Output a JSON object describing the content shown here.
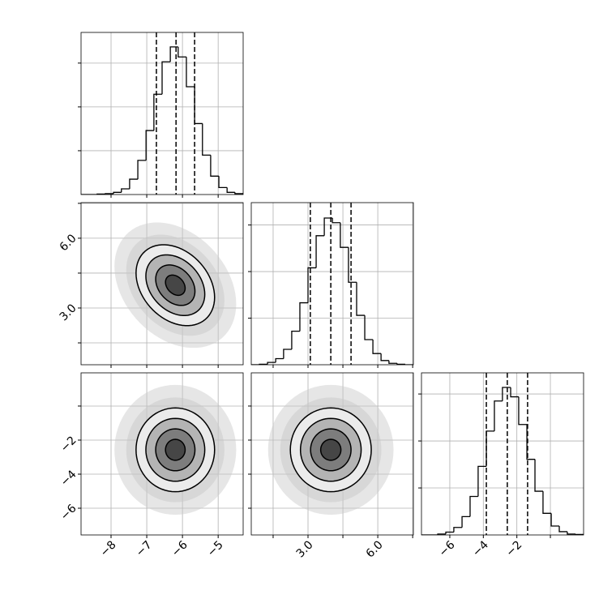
{
  "chart_data": [
    {
      "type": "histogram",
      "color": "#000000",
      "bins": [
        -8.84,
        -8.61,
        -8.39,
        -8.16,
        -7.93,
        -7.71,
        -7.48,
        -7.25,
        -7.02,
        -6.8,
        -6.57,
        -6.34,
        -6.12,
        -5.89,
        -5.66,
        -5.44,
        -5.21,
        -4.98,
        -4.75,
        -4.53,
        -4.3
      ],
      "counts": [
        0,
        0,
        0.01,
        0.02,
        0.05,
        0.13,
        0.35,
        0.78,
        1.46,
        2.29,
        3.03,
        3.37,
        3.14,
        2.46,
        1.62,
        0.9,
        0.42,
        0.16,
        0.05,
        0.02
      ],
      "quantiles": [
        -6.73,
        -6.18,
        -5.66
      ],
      "xlim": [
        -8.84,
        -4.3
      ],
      "ylim": [
        0,
        3.7
      ],
      "xticks": [
        -8,
        -7,
        -6,
        -5
      ],
      "yticks": [
        1,
        2,
        3
      ]
    },
    {
      "type": "contour",
      "color": "#000000",
      "mean": [
        -6.2,
        3.98
      ],
      "std": [
        0.55,
        0.87
      ],
      "corr": -0.3,
      "levels": [
        0.5,
        1,
        1.5,
        2
      ],
      "xlim": [
        -8.84,
        -4.3
      ],
      "ylim": [
        0.56,
        7.53
      ],
      "xticks": [
        -8,
        -7,
        -6,
        -5
      ],
      "yticks": [
        1.5,
        {
          "value": 3,
          "label": "3.0"
        },
        4.5,
        {
          "value": 6,
          "label": "6.0"
        },
        7.5
      ]
    },
    {
      "type": "histogram",
      "color": "#000000",
      "bins": [
        0.56,
        0.91,
        1.26,
        1.61,
        1.95,
        2.3,
        2.65,
        3.0,
        3.35,
        3.7,
        4.05,
        4.39,
        4.74,
        5.09,
        5.44,
        5.79,
        6.14,
        6.48,
        6.83,
        7.18,
        7.53
      ],
      "counts": [
        0,
        0.01,
        0.05,
        0.13,
        0.33,
        0.72,
        1.33,
        2.08,
        2.77,
        3.15,
        3.05,
        2.52,
        1.77,
        1.06,
        0.54,
        0.24,
        0.09,
        0.03,
        0.01,
        0
      ],
      "quantiles": [
        3.1,
        3.98,
        4.85
      ],
      "xlim": [
        0.56,
        7.53
      ],
      "ylim": [
        0,
        3.48
      ],
      "xticks": [
        1.5,
        3,
        4.5,
        6,
        7.5
      ],
      "yticks": [
        1,
        2,
        3
      ]
    },
    {
      "type": "contour",
      "color": "#000000",
      "mean": [
        -6.2,
        -2.57
      ],
      "std": [
        0.55,
        1.23
      ],
      "corr": 0,
      "levels": [
        0.5,
        1,
        1.5,
        2
      ],
      "xlim": [
        -8.84,
        -4.3
      ],
      "ylim": [
        -7.57,
        1.95
      ],
      "xticks": [
        {
          "value": -8,
          "label": "−8"
        },
        {
          "value": -7,
          "label": "−7"
        },
        {
          "value": -6,
          "label": "−6"
        },
        {
          "value": -5,
          "label": "−5"
        }
      ],
      "yticks": [
        {
          "value": -6,
          "label": "−6"
        },
        {
          "value": -4,
          "label": "−4"
        },
        {
          "value": -2,
          "label": "−2"
        },
        0
      ]
    },
    {
      "type": "contour",
      "color": "#000000",
      "mean": [
        3.98,
        -2.57
      ],
      "std": [
        0.87,
        1.23
      ],
      "corr": 0,
      "levels": [
        0.5,
        1,
        1.5,
        2
      ],
      "xlim": [
        0.56,
        7.53
      ],
      "ylim": [
        -7.57,
        1.95
      ],
      "xticks": [
        1.5,
        {
          "value": 3,
          "label": "3.0"
        },
        4.5,
        {
          "value": 6,
          "label": "6.0"
        },
        7.5
      ],
      "yticks": [
        -6,
        -4,
        -2,
        0
      ]
    },
    {
      "type": "histogram",
      "color": "#000000",
      "bins": [
        -7.69,
        -7.21,
        -6.72,
        -6.24,
        -5.76,
        -5.27,
        -4.79,
        -4.31,
        -3.82,
        -3.34,
        -2.86,
        -2.37,
        -1.89,
        -1.4,
        -0.92,
        -0.44,
        0.05,
        0.53,
        1.01,
        1.5,
        1.98
      ],
      "counts": [
        0,
        0,
        0.02,
        0.06,
        0.16,
        0.39,
        0.82,
        1.46,
        2.21,
        2.85,
        3.14,
        2.94,
        2.35,
        1.61,
        0.93,
        0.46,
        0.19,
        0.07,
        0.02,
        0.01
      ],
      "quantiles": [
        -3.82,
        -2.57,
        -1.36
      ],
      "xlim": [
        -7.69,
        1.98
      ],
      "ylim": [
        0,
        3.45
      ],
      "xticks": [
        {
          "value": -6,
          "label": "−6"
        },
        {
          "value": -4,
          "label": "−4"
        },
        {
          "value": -2,
          "label": "−2"
        },
        0
      ],
      "yticks": [
        1,
        2,
        3
      ]
    }
  ]
}
